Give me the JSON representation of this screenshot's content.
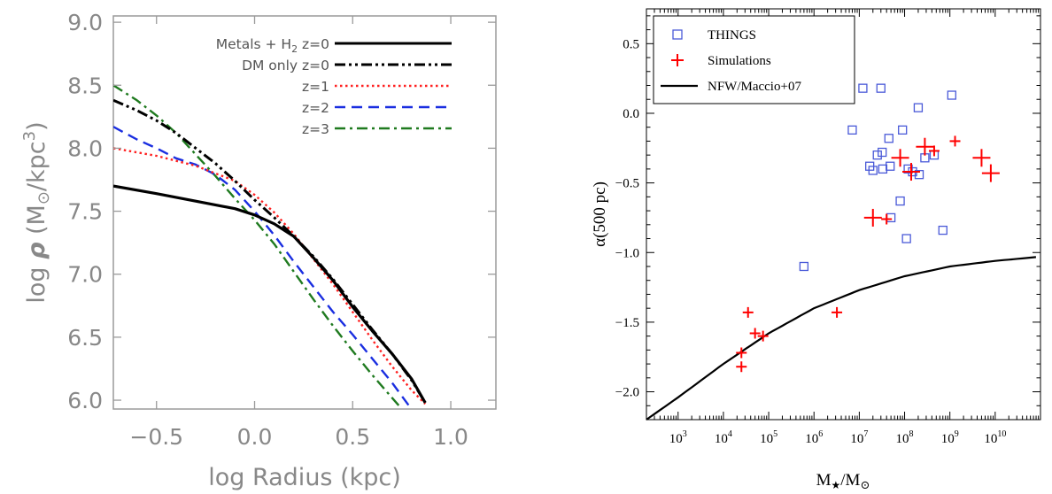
{
  "chart_data": [
    {
      "type": "line",
      "xlabel": "log Radius (kpc)",
      "ylabel": "log ρ (M⊙/kpc³)",
      "ylabel_parts": {
        "main": "log ",
        "rho": "ρ",
        "open": " (M",
        "sun": "⊙",
        "mid": "/kpc",
        "sup": "3",
        "close": ")"
      },
      "xlim": [
        -0.72,
        1.23
      ],
      "ylim": [
        5.93,
        9.05
      ],
      "xticks": [
        -0.5,
        0.0,
        0.5,
        1.0
      ],
      "xtick_labels": [
        "−0.5",
        "0.0",
        "0.5",
        "1.0"
      ],
      "yticks": [
        6.0,
        6.5,
        7.0,
        7.5,
        8.0,
        8.5,
        9.0
      ],
      "ytick_labels": [
        "6.0",
        "6.5",
        "7.0",
        "7.5",
        "8.0",
        "8.5",
        "9.0"
      ],
      "grid": false,
      "legend_position": "top-right",
      "series": [
        {
          "name": "Metals + H₂ z=0",
          "name_parts": {
            "pre": "Metals + H",
            "sub": "2",
            "post": " z=0"
          },
          "color": "#000000",
          "style": "solid",
          "x": [
            -0.72,
            -0.5,
            -0.3,
            -0.1,
            0.0,
            0.1,
            0.15,
            0.2,
            0.3,
            0.4,
            0.5,
            0.6,
            0.7,
            0.8,
            0.87
          ],
          "y": [
            7.7,
            7.64,
            7.58,
            7.52,
            7.47,
            7.4,
            7.35,
            7.3,
            7.13,
            6.95,
            6.74,
            6.55,
            6.37,
            6.17,
            5.98
          ]
        },
        {
          "name": "DM only  z=0",
          "color": "#000000",
          "style": "dash-dot-dot",
          "x": [
            -0.72,
            -0.6,
            -0.5,
            -0.4,
            -0.3,
            -0.2,
            -0.1,
            0.0,
            0.1,
            0.2,
            0.3,
            0.4,
            0.5,
            0.6,
            0.7,
            0.8,
            0.87
          ],
          "y": [
            8.38,
            8.3,
            8.22,
            8.12,
            8.0,
            7.88,
            7.74,
            7.59,
            7.45,
            7.3,
            7.14,
            6.96,
            6.76,
            6.56,
            6.37,
            6.16,
            5.98
          ]
        },
        {
          "name": "z=1",
          "color": "#ff2020",
          "style": "dotted",
          "x": [
            -0.72,
            -0.5,
            -0.3,
            -0.1,
            0.0,
            0.1,
            0.2,
            0.3,
            0.4,
            0.5,
            0.6,
            0.7,
            0.8,
            0.87
          ],
          "y": [
            8.0,
            7.94,
            7.86,
            7.74,
            7.63,
            7.49,
            7.32,
            7.12,
            6.92,
            6.7,
            6.48,
            6.27,
            6.08,
            5.97
          ]
        },
        {
          "name": "z=2",
          "color": "#1a2ee0",
          "style": "dashed",
          "x": [
            -0.72,
            -0.6,
            -0.5,
            -0.4,
            -0.3,
            -0.2,
            -0.1,
            0.0,
            0.1,
            0.2,
            0.3,
            0.4,
            0.5,
            0.6,
            0.7,
            0.79
          ],
          "y": [
            8.17,
            8.07,
            8.0,
            7.92,
            7.87,
            7.79,
            7.67,
            7.5,
            7.31,
            7.1,
            6.9,
            6.7,
            6.52,
            6.33,
            6.14,
            5.95
          ]
        },
        {
          "name": "z=3",
          "color": "#1f7a1f",
          "style": "dash-dot",
          "x": [
            -0.72,
            -0.6,
            -0.5,
            -0.4,
            -0.3,
            -0.2,
            -0.1,
            0.0,
            0.1,
            0.2,
            0.3,
            0.4,
            0.5,
            0.6,
            0.7,
            0.74
          ],
          "y": [
            8.5,
            8.38,
            8.26,
            8.12,
            7.95,
            7.78,
            7.6,
            7.43,
            7.24,
            7.02,
            6.8,
            6.59,
            6.39,
            6.2,
            6.02,
            5.95
          ]
        }
      ]
    },
    {
      "type": "scatter",
      "xlabel": "M★/M⊙",
      "xlabel_parts": {
        "m1": "M",
        "star": "★",
        "slash": "/M",
        "sun": "⊙"
      },
      "ylabel": "α(500 pc)",
      "x_scale": "log",
      "xlim": [
        200,
        100000000000.0
      ],
      "ylim": [
        -2.2,
        0.75
      ],
      "xtick_exponents": [
        3,
        4,
        5,
        6,
        7,
        8,
        9,
        10
      ],
      "xtick_base": "10",
      "yticks": [
        -2.0,
        -1.5,
        -1.0,
        -0.5,
        0.0,
        0.5
      ],
      "ytick_labels": [
        "−2.0",
        "−1.5",
        "−1.0",
        "−0.5",
        "0.0",
        "0.5"
      ],
      "grid": false,
      "legend_position": "top-left",
      "series": [
        {
          "name": "THINGS",
          "marker": "open-square",
          "color": "#4a5ad8",
          "x": [
            600000.0,
            7000000.0,
            12000000.0,
            17000000.0,
            20000000.0,
            25000000.0,
            30000000.0,
            32000000.0,
            33000000.0,
            45000000.0,
            48000000.0,
            50000000.0,
            80000000.0,
            90000000.0,
            110000000.0,
            120000000.0,
            150000000.0,
            200000000.0,
            210000000.0,
            280000000.0,
            450000000.0,
            700000000.0,
            1100000000.0
          ],
          "y": [
            -1.1,
            -0.12,
            0.18,
            -0.38,
            -0.41,
            -0.3,
            0.18,
            -0.28,
            -0.4,
            -0.18,
            -0.38,
            -0.75,
            -0.63,
            -0.12,
            -0.9,
            -0.4,
            -0.42,
            0.04,
            -0.44,
            -0.32,
            -0.3,
            -0.84,
            0.13
          ]
        },
        {
          "name": "Simulations",
          "marker": "plus",
          "color": "#ff0000",
          "x": [
            25000.0,
            25000.0,
            35000.0,
            50000.0,
            75000.0,
            3200000.0,
            20000000.0,
            40000000.0,
            80000000.0,
            140000000.0,
            280000000.0,
            450000000.0,
            1300000000.0,
            5000000000.0,
            8000000000.0
          ],
          "y": [
            -1.82,
            -1.72,
            -1.43,
            -1.58,
            -1.6,
            -1.43,
            -0.75,
            -0.76,
            -0.32,
            -0.42,
            -0.24,
            -0.27,
            -0.2,
            -0.32,
            -0.43
          ],
          "sizes": [
            "s",
            "s",
            "s",
            "s",
            "s",
            "s",
            "l",
            "s",
            "l",
            "l",
            "l",
            "s",
            "s",
            "l",
            "l"
          ]
        },
        {
          "name": "NFW/Maccio+07",
          "type": "line",
          "color": "#000000",
          "x": [
            200,
            1000.0,
            10000.0,
            100000.0,
            1000000.0,
            10000000.0,
            100000000.0,
            1000000000.0,
            10000000000.0,
            100000000000.0
          ],
          "y": [
            -2.2,
            -2.04,
            -1.8,
            -1.58,
            -1.4,
            -1.27,
            -1.17,
            -1.1,
            -1.06,
            -1.03
          ]
        }
      ]
    }
  ]
}
